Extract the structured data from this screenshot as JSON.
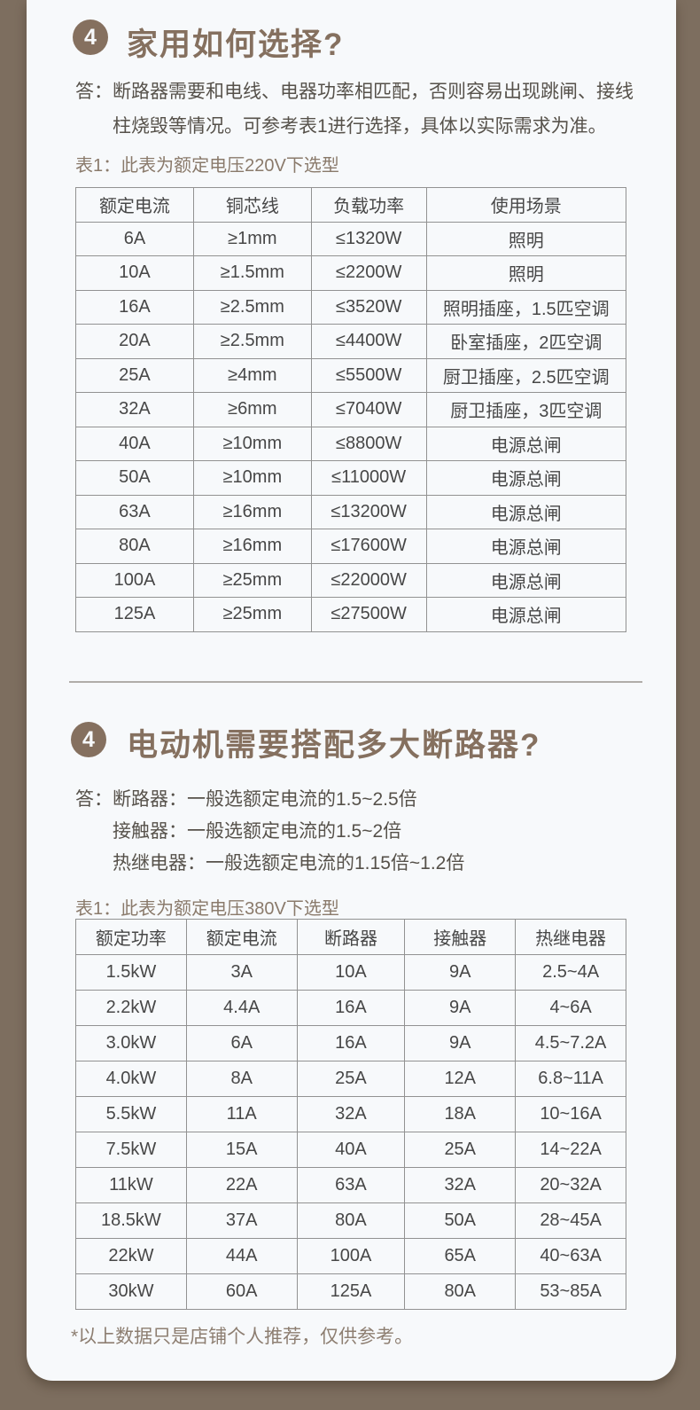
{
  "page": {
    "background_color": "#7d6e5f",
    "card_color": "#f7f9fb",
    "accent_brown": "#85705f",
    "caption_brown": "#8a7a6b",
    "body_text_color": "#56514a",
    "table_text_color": "#474747",
    "table_border_color": "#929292"
  },
  "section1": {
    "badge": "4",
    "title": "家用如何选择?",
    "answer_prefix": "答：",
    "answer_text": "断路器需要和电线、电器功率相匹配，否则容易出现跳闸、接线柱烧毁等情况。可参考表1进行选择，具体以实际需求为准。",
    "table_caption": "表1：此表为额定电压220V下选型",
    "table": {
      "headers": [
        "额定电流",
        "铜芯线",
        "负载功率",
        "使用场景"
      ],
      "rows": [
        [
          "6A",
          "≥1mm",
          "≤1320W",
          "照明"
        ],
        [
          "10A",
          "≥1.5mm",
          "≤2200W",
          "照明"
        ],
        [
          "16A",
          "≥2.5mm",
          "≤3520W",
          "照明插座，1.5匹空调"
        ],
        [
          "20A",
          "≥2.5mm",
          "≤4400W",
          "卧室插座，2匹空调"
        ],
        [
          "25A",
          "≥4mm",
          "≤5500W",
          "厨卫插座，2.5匹空调"
        ],
        [
          "32A",
          "≥6mm",
          "≤7040W",
          "厨卫插座，3匹空调"
        ],
        [
          "40A",
          "≥10mm",
          "≤8800W",
          "电源总闸"
        ],
        [
          "50A",
          "≥10mm",
          "≤11000W",
          "电源总闸"
        ],
        [
          "63A",
          "≥16mm",
          "≤13200W",
          "电源总闸"
        ],
        [
          "80A",
          "≥16mm",
          "≤17600W",
          "电源总闸"
        ],
        [
          "100A",
          "≥25mm",
          "≤22000W",
          "电源总闸"
        ],
        [
          "125A",
          "≥25mm",
          "≤27500W",
          "电源总闸"
        ]
      ]
    }
  },
  "section2": {
    "badge": "4",
    "title": "电动机需要搭配多大断路器?",
    "answer_prefix": "答：",
    "answer_lines": [
      "断路器：一般选额定电流的1.5~2.5倍",
      "接触器：一般选额定电流的1.5~2倍",
      "热继电器：一般选额定电流的1.15倍~1.2倍"
    ],
    "table_caption": "表1：此表为额定电压380V下选型",
    "table": {
      "headers": [
        "额定功率",
        "额定电流",
        "断路器",
        "接触器",
        "热继电器"
      ],
      "rows": [
        [
          "1.5kW",
          "3A",
          "10A",
          "9A",
          "2.5~4A"
        ],
        [
          "2.2kW",
          "4.4A",
          "16A",
          "9A",
          "4~6A"
        ],
        [
          "3.0kW",
          "6A",
          "16A",
          "9A",
          "4.5~7.2A"
        ],
        [
          "4.0kW",
          "8A",
          "25A",
          "12A",
          "6.8~11A"
        ],
        [
          "5.5kW",
          "11A",
          "32A",
          "18A",
          "10~16A"
        ],
        [
          "7.5kW",
          "15A",
          "40A",
          "25A",
          "14~22A"
        ],
        [
          "11kW",
          "22A",
          "63A",
          "32A",
          "20~32A"
        ],
        [
          "18.5kW",
          "37A",
          "80A",
          "50A",
          "28~45A"
        ],
        [
          "22kW",
          "44A",
          "100A",
          "65A",
          "40~63A"
        ],
        [
          "30kW",
          "60A",
          "125A",
          "80A",
          "53~85A"
        ]
      ]
    },
    "footnote": "*以上数据只是店铺个人推荐，仅供参考。"
  }
}
